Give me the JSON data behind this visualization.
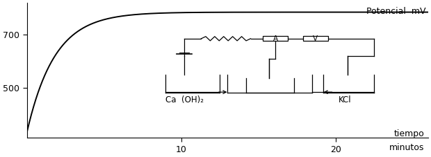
{
  "title": "Potencial  mV",
  "xlabel_line1": "tiempo",
  "xlabel_line2": "minutos",
  "yticks": [
    500,
    700
  ],
  "xticks": [
    10,
    20
  ],
  "xlim": [
    0,
    26
  ],
  "ylim": [
    310,
    820
  ],
  "curve_color": "#000000",
  "background_color": "#ffffff",
  "label_ca": "Ca  (OH)₂",
  "label_kcl": "KCl",
  "label_A": "A",
  "label_V": "V",
  "curve_ymin": 330,
  "curve_ymax": 785,
  "curve_tau": 1.8
}
